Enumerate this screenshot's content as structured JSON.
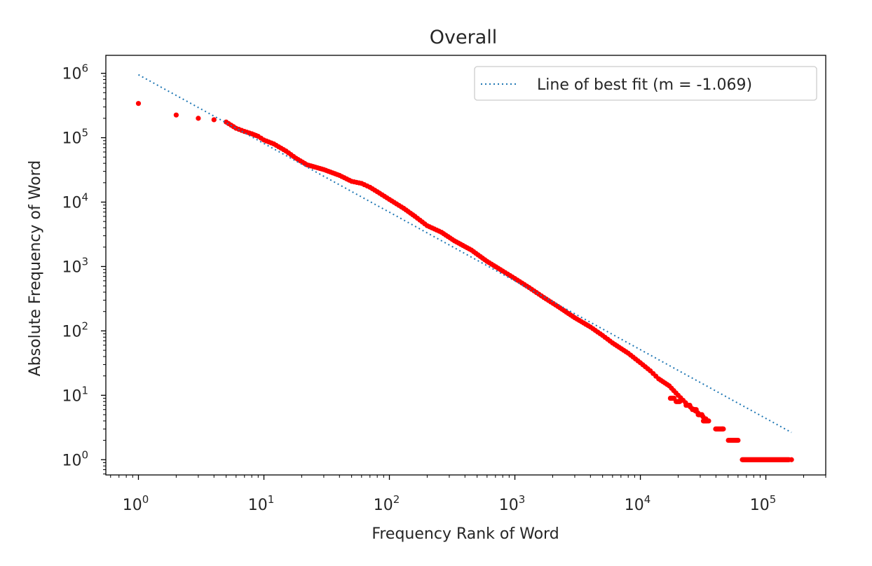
{
  "chart_data": {
    "type": "scatter",
    "title": "Overall",
    "xlabel": "Frequency Rank of Word",
    "ylabel": "Absolute Frequency of Word",
    "xscale": "log",
    "yscale": "log",
    "xlim": [
      0.55,
      300000
    ],
    "ylim": [
      0.58,
      1900000
    ],
    "grid": false,
    "legend_position": "upper right",
    "x_ticks": [
      {
        "base": "10",
        "exp": "0",
        "value": 1
      },
      {
        "base": "10",
        "exp": "1",
        "value": 10
      },
      {
        "base": "10",
        "exp": "2",
        "value": 100
      },
      {
        "base": "10",
        "exp": "3",
        "value": 1000
      },
      {
        "base": "10",
        "exp": "4",
        "value": 10000
      },
      {
        "base": "10",
        "exp": "5",
        "value": 100000
      }
    ],
    "y_ticks": [
      {
        "base": "10",
        "exp": "0",
        "value": 1
      },
      {
        "base": "10",
        "exp": "1",
        "value": 10
      },
      {
        "base": "10",
        "exp": "2",
        "value": 100
      },
      {
        "base": "10",
        "exp": "3",
        "value": 1000
      },
      {
        "base": "10",
        "exp": "4",
        "value": 10000
      },
      {
        "base": "10",
        "exp": "5",
        "value": 100000
      },
      {
        "base": "10",
        "exp": "6",
        "value": 1000000
      }
    ],
    "series": [
      {
        "kind": "scatter",
        "color": "#ff0000",
        "points": [
          [
            1,
            340000
          ],
          [
            2,
            225000
          ],
          [
            3,
            200000
          ],
          [
            4,
            190000
          ],
          [
            5,
            175000
          ],
          [
            6,
            140000
          ],
          [
            7,
            125000
          ],
          [
            8,
            115000
          ],
          [
            9,
            105000
          ],
          [
            10,
            92000
          ],
          [
            12,
            80000
          ],
          [
            15,
            62000
          ],
          [
            18,
            48000
          ],
          [
            22,
            38000
          ],
          [
            30,
            32000
          ],
          [
            40,
            26000
          ],
          [
            50,
            21000
          ],
          [
            60,
            19500
          ],
          [
            70,
            17000
          ],
          [
            80,
            14500
          ],
          [
            100,
            11000
          ],
          [
            130,
            8000
          ],
          [
            160,
            6000
          ],
          [
            200,
            4300
          ],
          [
            260,
            3400
          ],
          [
            330,
            2500
          ],
          [
            450,
            1800
          ],
          [
            600,
            1200
          ],
          [
            800,
            850
          ],
          [
            1000,
            650
          ],
          [
            1300,
            470
          ],
          [
            1700,
            330
          ],
          [
            2200,
            240
          ],
          [
            3000,
            160
          ],
          [
            4000,
            115
          ],
          [
            5000,
            85
          ],
          [
            6000,
            65
          ],
          [
            8000,
            45
          ],
          [
            10000,
            32
          ],
          [
            12000,
            24
          ],
          [
            14000,
            18
          ],
          [
            17000,
            14
          ],
          [
            20000,
            10
          ],
          [
            24000,
            7
          ],
          [
            30000,
            5
          ],
          [
            35000,
            4
          ],
          [
            45000,
            3
          ],
          [
            60000,
            2
          ],
          [
            160000,
            1
          ]
        ],
        "plateaus": [
          {
            "y": 3,
            "x_start": 38000,
            "x_end": 48000
          },
          {
            "y": 2,
            "x_start": 48000,
            "x_end": 62000
          },
          {
            "y": 1,
            "x_start": 62000,
            "x_end": 160000
          }
        ]
      },
      {
        "kind": "line",
        "name": "Line of best fit (m = -1.069)",
        "style": "dotted",
        "color": "#1f77b4",
        "x": [
          1,
          160000
        ],
        "y": [
          950000,
          2.65
        ]
      }
    ]
  }
}
